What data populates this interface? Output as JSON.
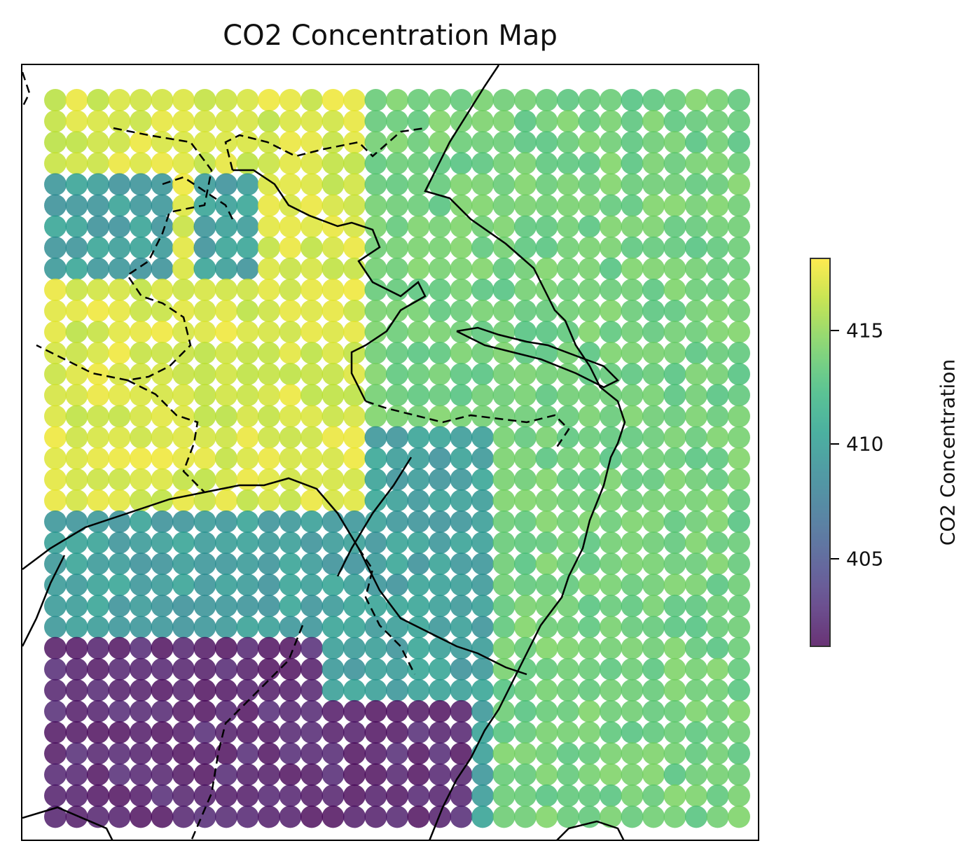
{
  "chart_data": {
    "type": "heatmap",
    "title": "CO2 Concentration Map",
    "colorbar": {
      "label": "CO2 Concentration",
      "range": [
        401,
        418
      ],
      "ticks": [
        405,
        410,
        415
      ],
      "colormap": "viridis",
      "alpha": 0.8
    },
    "grid": {
      "cols": 33,
      "rows": 35
    },
    "regions": [
      {
        "name": "north-yellow",
        "value": 416.8
      },
      {
        "name": "east-green",
        "value": 413.5
      },
      {
        "name": "center-teal",
        "value": 409.5
      },
      {
        "name": "southwest-purple",
        "value": 401.5
      }
    ]
  },
  "colors": {
    "viridis_stops": [
      "#440154",
      "#482878",
      "#3e4989",
      "#31688e",
      "#26828e",
      "#1f9e89",
      "#35b779",
      "#6ece58",
      "#b5de2b",
      "#fde725"
    ]
  }
}
